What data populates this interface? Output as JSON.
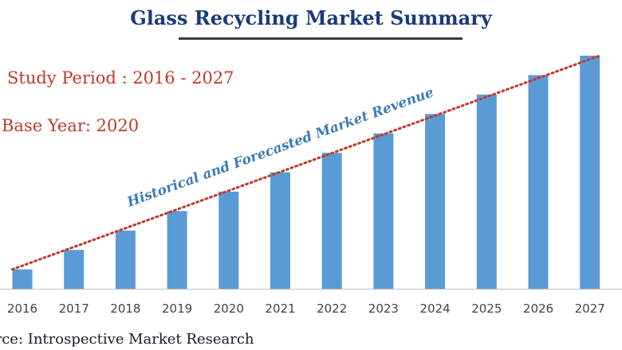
{
  "title": "Glass Recycling Market Summary",
  "info": {
    "study_period": "Study Period : 2016 - 2027",
    "base_year": "Base Year: 2020"
  },
  "source": "urce: Introspective Market Research",
  "colors": {
    "title": "#1a3a7a",
    "info_text": "#c0392b",
    "bar": "#5b9bd5",
    "trend_line": "#c0392b",
    "trend_label": "#3d7ab8",
    "axis_line": "#bfbfbf"
  },
  "chart_data": {
    "type": "bar",
    "categories": [
      "2016",
      "2017",
      "2018",
      "2019",
      "2020",
      "2021",
      "2022",
      "2023",
      "2024",
      "2025",
      "2026",
      "2027"
    ],
    "values": [
      1,
      2,
      3,
      4,
      5,
      6,
      7,
      8,
      9,
      10,
      11,
      12
    ],
    "y_axis_shown": false,
    "grid": false,
    "annotations": [
      {
        "text": "Historical and Forecasted Market Revenue",
        "kind": "trend-line-label"
      }
    ],
    "trend_line": {
      "style": "dotted",
      "from_category": "2016",
      "to_category": "2027"
    }
  }
}
